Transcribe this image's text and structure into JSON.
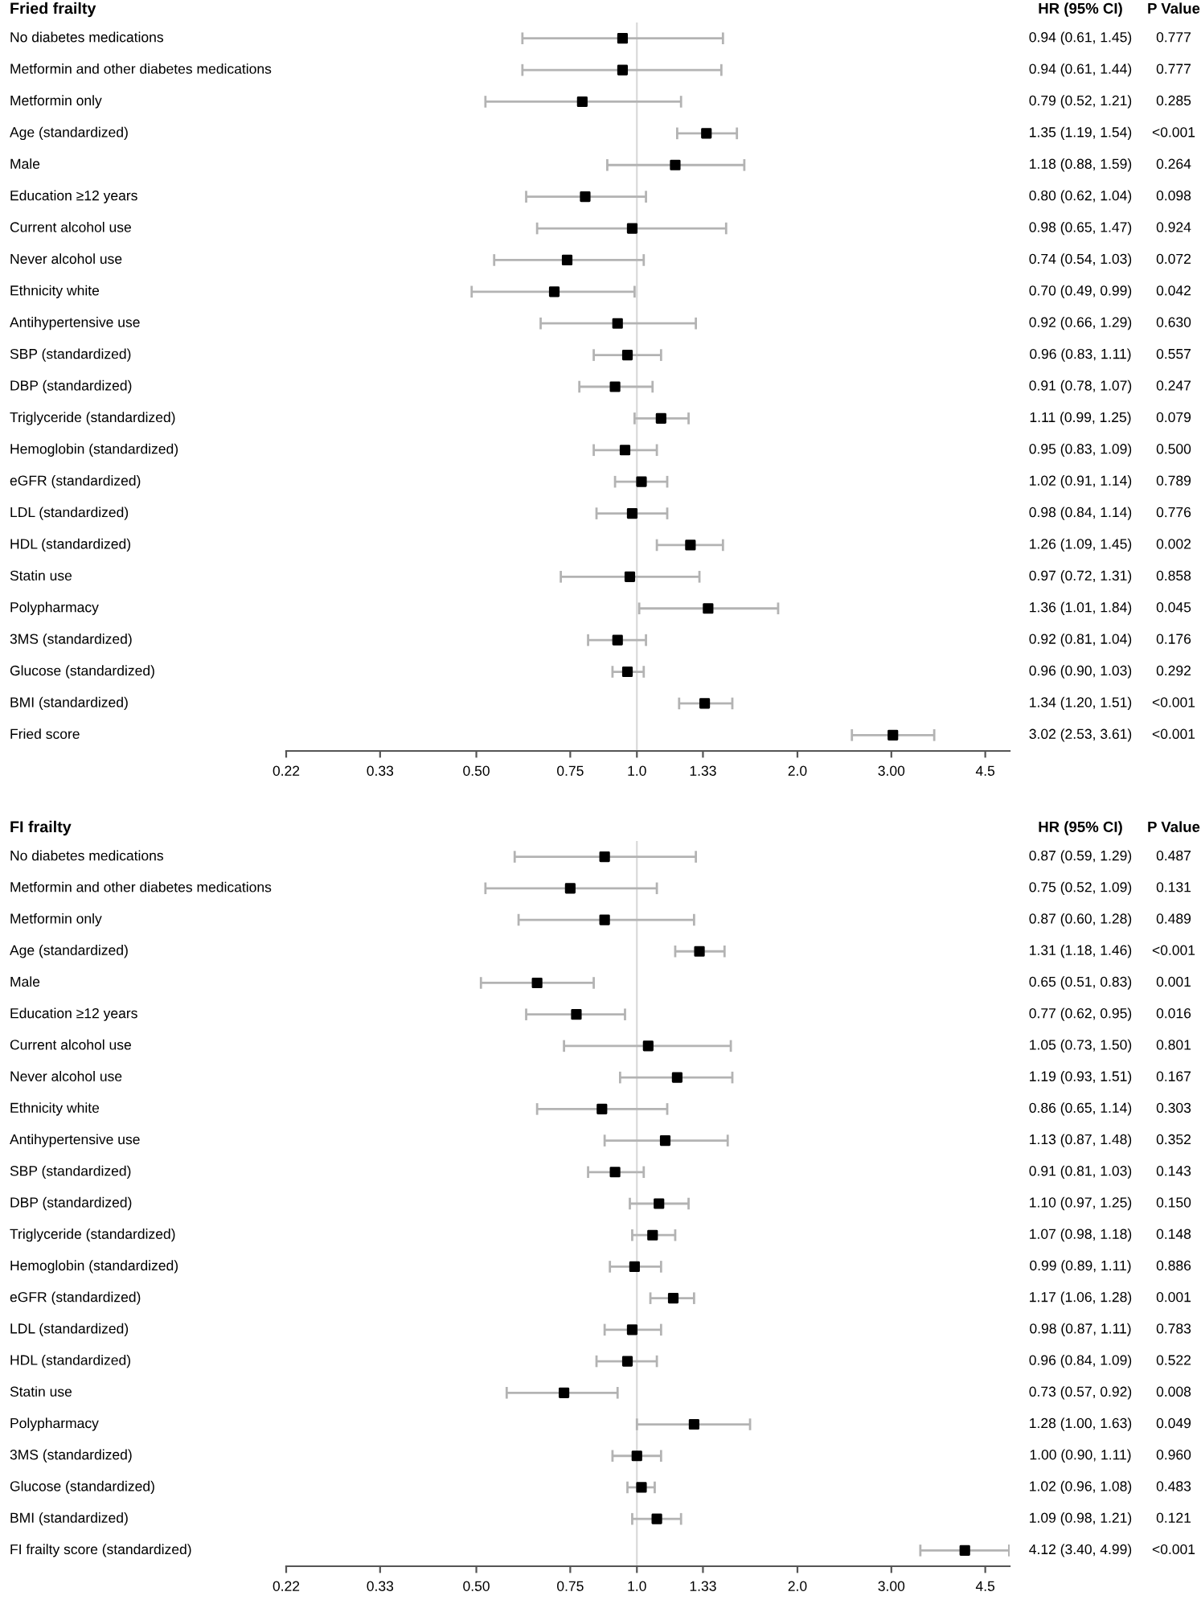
{
  "chart_data": [
    {
      "type": "scatter",
      "title": "Fried frailty",
      "orientation": "horizontal",
      "log": "x",
      "marker": "square",
      "grid": false,
      "categories": [
        "No diabetes medications",
        "Metformin and other diabetes medications",
        "Metformin only",
        "Age (standardized)",
        "Male",
        "Education ≥12 years",
        "Current alcohol use",
        "Never alcohol use",
        "Ethnicity white",
        "Antihypertensive use",
        "SBP (standardized)",
        "DBP (standardized)",
        "Triglyceride (standardized)",
        "Hemoglobin (standardized)",
        "eGFR (standardized)",
        "LDL (standardized)",
        "HDL (standardized)",
        "Statin use",
        "Polypharmacy",
        "3MS (standardized)",
        "Glucose (standardized)",
        "BMI (standardized)",
        "Fried score"
      ],
      "series": [
        {
          "color": "#000000",
          "values": [
            0.94,
            0.94,
            0.79,
            1.35,
            1.18,
            0.8,
            0.98,
            0.74,
            0.7,
            0.92,
            0.96,
            0.91,
            1.11,
            0.95,
            1.02,
            0.98,
            1.26,
            0.97,
            1.36,
            0.92,
            0.96,
            1.34,
            3.02
          ],
          "errors": [
            [
              0.61,
              1.45
            ],
            [
              0.61,
              1.44
            ],
            [
              0.52,
              1.21
            ],
            [
              1.19,
              1.54
            ],
            [
              0.88,
              1.59
            ],
            [
              0.62,
              1.04
            ],
            [
              0.65,
              1.47
            ],
            [
              0.54,
              1.03
            ],
            [
              0.49,
              0.99
            ],
            [
              0.66,
              1.29
            ],
            [
              0.83,
              1.11
            ],
            [
              0.78,
              1.07
            ],
            [
              0.99,
              1.25
            ],
            [
              0.83,
              1.09
            ],
            [
              0.91,
              1.14
            ],
            [
              0.84,
              1.14
            ],
            [
              1.09,
              1.45
            ],
            [
              0.72,
              1.31
            ],
            [
              1.01,
              1.84
            ],
            [
              0.81,
              1.04
            ],
            [
              0.9,
              1.03
            ],
            [
              1.2,
              1.51
            ],
            [
              2.53,
              3.61
            ]
          ],
          "value_labels": [
            "0.94 (0.61, 1.45)",
            "0.94 (0.61, 1.44)",
            "0.79 (0.52, 1.21)",
            "1.35 (1.19, 1.54)",
            "1.18 (0.88, 1.59)",
            "0.80 (0.62, 1.04)",
            "0.98 (0.65, 1.47)",
            "0.74 (0.54, 1.03)",
            "0.70 (0.49, 0.99)",
            "0.92 (0.66, 1.29)",
            "0.96 (0.83, 1.11)",
            "0.91 (0.78, 1.07)",
            "1.11 (0.99, 1.25)",
            "0.95 (0.83, 1.09)",
            "1.02 (0.91, 1.14)",
            "0.98 (0.84, 1.14)",
            "1.26 (1.09, 1.45)",
            "0.97 (0.72, 1.31)",
            "1.36 (1.01, 1.84)",
            "0.92 (0.81, 1.04)",
            "0.96 (0.90, 1.03)",
            "1.34 (1.20, 1.51)",
            "3.02 (2.53, 3.61)"
          ]
        }
      ],
      "xlim": [
        0.22,
        5.0
      ],
      "xticks": [
        0.22,
        0.33,
        {
          "value": 0.5,
          "label": "0.50"
        },
        0.75,
        {
          "value": 1.0,
          "label": "1.0"
        },
        1.33,
        {
          "value": 2.0,
          "label": "2.0"
        },
        {
          "value": 3.0,
          "label": "3.00"
        },
        4.5
      ],
      "ref_lines": [
        {
          "axis": "x",
          "value": 1.0,
          "color": "#d9d9d9"
        }
      ],
      "annotations": [
        "HR (95% CI)",
        "P Value",
        "0.777",
        "0.777",
        "0.285",
        "<0.001",
        "0.264",
        "0.098",
        "0.924",
        "0.072",
        "0.042",
        "0.630",
        "0.557",
        "0.247",
        "0.079",
        "0.500",
        "0.789",
        "0.776",
        "0.002",
        "0.858",
        "0.045",
        "0.176",
        "0.292",
        "<0.001",
        "<0.001"
      ]
    },
    {
      "type": "scatter",
      "title": "FI frailty",
      "orientation": "horizontal",
      "log": "x",
      "marker": "square",
      "grid": false,
      "categories": [
        "No diabetes medications",
        "Metformin and other diabetes medications",
        "Metformin only",
        "Age (standardized)",
        "Male",
        "Education ≥12 years",
        "Current alcohol use",
        "Never alcohol use",
        "Ethnicity white",
        "Antihypertensive use",
        "SBP (standardized)",
        "DBP (standardized)",
        "Triglyceride (standardized)",
        "Hemoglobin (standardized)",
        "eGFR (standardized)",
        "LDL (standardized)",
        "HDL (standardized)",
        "Statin use",
        "Polypharmacy",
        "3MS (standardized)",
        "Glucose (standardized)",
        "BMI (standardized)",
        "FI frailty score (standardized)"
      ],
      "series": [
        {
          "color": "#000000",
          "values": [
            0.87,
            0.75,
            0.87,
            1.31,
            0.65,
            0.77,
            1.05,
            1.19,
            0.86,
            1.13,
            0.91,
            1.1,
            1.07,
            0.99,
            1.17,
            0.98,
            0.96,
            0.73,
            1.28,
            1.0,
            1.02,
            1.09,
            4.12
          ],
          "errors": [
            [
              0.59,
              1.29
            ],
            [
              0.52,
              1.09
            ],
            [
              0.6,
              1.28
            ],
            [
              1.18,
              1.46
            ],
            [
              0.51,
              0.83
            ],
            [
              0.62,
              0.95
            ],
            [
              0.73,
              1.5
            ],
            [
              0.93,
              1.51
            ],
            [
              0.65,
              1.14
            ],
            [
              0.87,
              1.48
            ],
            [
              0.81,
              1.03
            ],
            [
              0.97,
              1.25
            ],
            [
              0.98,
              1.18
            ],
            [
              0.89,
              1.11
            ],
            [
              1.06,
              1.28
            ],
            [
              0.87,
              1.11
            ],
            [
              0.84,
              1.09
            ],
            [
              0.57,
              0.92
            ],
            [
              1.0,
              1.63
            ],
            [
              0.9,
              1.11
            ],
            [
              0.96,
              1.08
            ],
            [
              0.98,
              1.21
            ],
            [
              3.4,
              4.99
            ]
          ],
          "value_labels": [
            "0.87 (0.59, 1.29)",
            "0.75 (0.52, 1.09)",
            "0.87 (0.60, 1.28)",
            "1.31 (1.18, 1.46)",
            "0.65 (0.51, 0.83)",
            "0.77 (0.62, 0.95)",
            "1.05 (0.73, 1.50)",
            "1.19 (0.93, 1.51)",
            "0.86 (0.65, 1.14)",
            "1.13 (0.87, 1.48)",
            "0.91 (0.81, 1.03)",
            "1.10 (0.97, 1.25)",
            "1.07 (0.98, 1.18)",
            "0.99 (0.89, 1.11)",
            "1.17 (1.06, 1.28)",
            "0.98 (0.87, 1.11)",
            "0.96 (0.84, 1.09)",
            "0.73 (0.57, 0.92)",
            "1.28 (1.00, 1.63)",
            "1.00 (0.90, 1.11)",
            "1.02 (0.96, 1.08)",
            "1.09 (0.98, 1.21)",
            "4.12 (3.40, 4.99)"
          ]
        }
      ],
      "xlim": [
        0.22,
        5.0
      ],
      "xticks": [
        0.22,
        0.33,
        {
          "value": 0.5,
          "label": "0.50"
        },
        0.75,
        {
          "value": 1.0,
          "label": "1.0"
        },
        1.33,
        {
          "value": 2.0,
          "label": "2.0"
        },
        {
          "value": 3.0,
          "label": "3.00"
        },
        4.5
      ],
      "ref_lines": [
        {
          "axis": "x",
          "value": 1.0,
          "color": "#d9d9d9"
        }
      ],
      "annotations": [
        "HR (95% CI)",
        "P Value",
        "0.487",
        "0.131",
        "0.489",
        "<0.001",
        "0.001",
        "0.016",
        "0.801",
        "0.167",
        "0.303",
        "0.352",
        "0.143",
        "0.150",
        "0.148",
        "0.886",
        "0.001",
        "0.783",
        "0.522",
        "0.008",
        "0.049",
        "0.960",
        "0.483",
        "0.121",
        "<0.001"
      ]
    }
  ]
}
